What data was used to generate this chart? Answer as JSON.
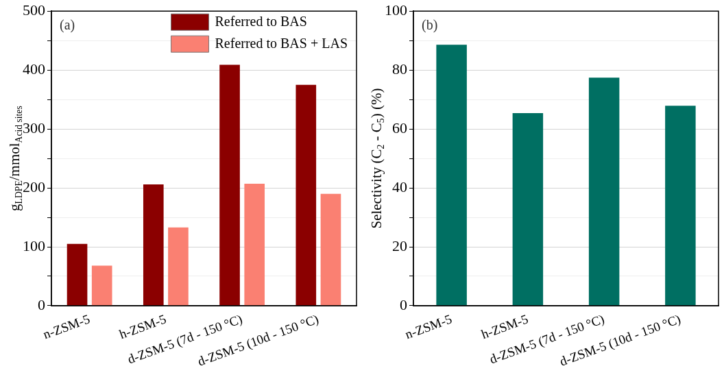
{
  "chart_data": [
    {
      "type": "bar",
      "ylabel": "g$_{LDPE}$/mmol$_{Acid sites}$",
      "categories": [
        "n-ZSM-5",
        "h-ZSM-5",
        "d-ZSM-5 (7d - 150 °C)",
        "d-ZSM-5 (10d - 150 °C)"
      ],
      "series": [
        {
          "name": "Referred to BAS",
          "color": "#8b0000",
          "values": [
            105,
            206,
            409,
            375
          ]
        },
        {
          "name": "Referred to BAS + LAS",
          "color": "#fa8072",
          "values": [
            68,
            133,
            207,
            190
          ]
        }
      ],
      "ylim": [
        0,
        500
      ],
      "yticks": [
        0,
        {
          "value": 50,
          "label": null
        },
        100,
        {
          "value": 150,
          "label": null
        },
        200,
        {
          "value": 250,
          "label": null
        },
        300,
        {
          "value": 350,
          "label": null
        },
        400,
        {
          "value": 450,
          "label": null
        },
        500
      ],
      "grid": "y",
      "legend": "top right",
      "annotations": [
        "(a)"
      ]
    },
    {
      "type": "bar",
      "ylabel": "Selectivity (C$_{2}$ - C$_{5}$) (%)",
      "categories": [
        "n-ZSM-5",
        "h-ZSM-5",
        "d-ZSM-5 (7d - 150 °C)",
        "d-ZSM-5 (10d - 150 °C)"
      ],
      "series": [
        {
          "color": "#006f62",
          "values": [
            88.6,
            65.4,
            77.4,
            67.9
          ]
        }
      ],
      "ylim": [
        0,
        100
      ],
      "yticks": [
        0,
        {
          "value": 10,
          "label": null
        },
        20,
        {
          "value": 30,
          "label": null
        },
        40,
        {
          "value": 50,
          "label": null
        },
        60,
        {
          "value": 70,
          "label": null
        },
        80,
        {
          "value": 90,
          "label": null
        },
        100
      ],
      "grid": "y",
      "annotations": [
        "(b)"
      ]
    }
  ]
}
